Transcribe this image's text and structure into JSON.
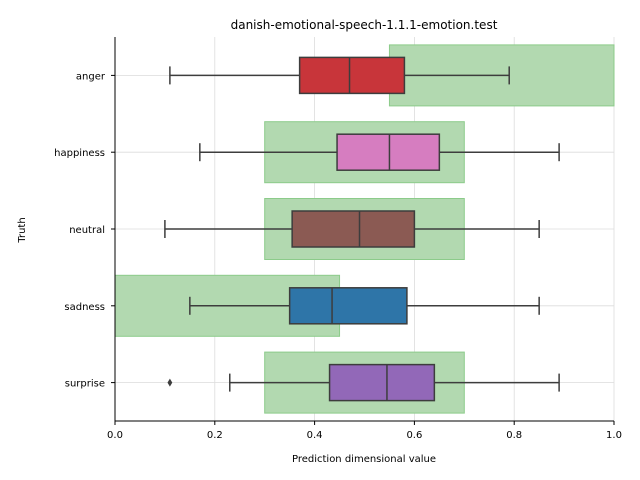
{
  "chart_data": {
    "type": "box",
    "title": "danish-emotional-speech-1.1.1-emotion.test",
    "xlabel": "Prediction dimensional value",
    "ylabel": "Truth",
    "xlim": [
      0.0,
      1.0
    ],
    "x_ticks": [
      "0.0",
      "0.2",
      "0.4",
      "0.6",
      "0.8",
      "1.0"
    ],
    "x_tick_values": [
      0.0,
      0.2,
      0.4,
      0.6,
      0.8,
      1.0
    ],
    "grid": true,
    "categories": [
      "anger",
      "happiness",
      "neutral",
      "sadness",
      "surprise"
    ],
    "expected_ranges": [
      {
        "category": "anger",
        "low": 0.55,
        "high": 1.0
      },
      {
        "category": "happiness",
        "low": 0.3,
        "high": 0.7
      },
      {
        "category": "neutral",
        "low": 0.3,
        "high": 0.7
      },
      {
        "category": "sadness",
        "low": 0.0,
        "high": 0.45
      },
      {
        "category": "surprise",
        "low": 0.3,
        "high": 0.7
      }
    ],
    "boxes": [
      {
        "category": "anger",
        "whisker_low": 0.11,
        "q1": 0.37,
        "median": 0.47,
        "q3": 0.58,
        "whisker_high": 0.79,
        "fliers": [],
        "color": "#c8353a"
      },
      {
        "category": "happiness",
        "whisker_low": 0.17,
        "q1": 0.445,
        "median": 0.55,
        "q3": 0.65,
        "whisker_high": 0.89,
        "fliers": [],
        "color": "#d67dc0"
      },
      {
        "category": "neutral",
        "whisker_low": 0.1,
        "q1": 0.355,
        "median": 0.49,
        "q3": 0.6,
        "whisker_high": 0.85,
        "fliers": [],
        "color": "#8b5a53"
      },
      {
        "category": "sadness",
        "whisker_low": 0.15,
        "q1": 0.35,
        "median": 0.435,
        "q3": 0.585,
        "whisker_high": 0.85,
        "fliers": [],
        "color": "#2e75a8"
      },
      {
        "category": "surprise",
        "whisker_low": 0.23,
        "q1": 0.43,
        "median": 0.545,
        "q3": 0.64,
        "whisker_high": 0.89,
        "fliers": [
          0.11
        ],
        "color": "#9268b8"
      }
    ]
  }
}
